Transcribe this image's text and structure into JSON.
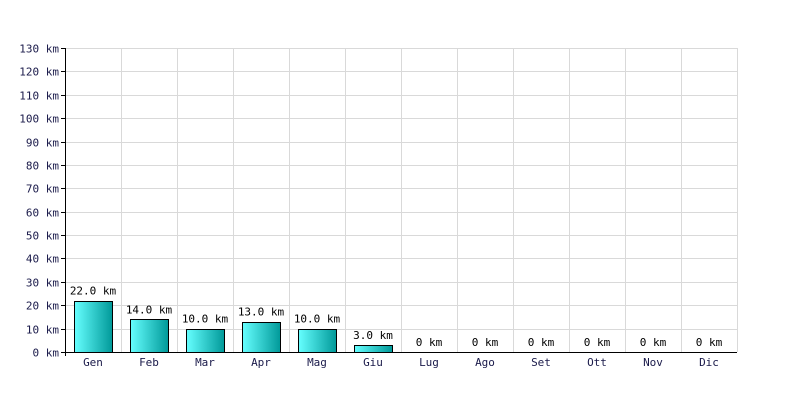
{
  "chart_data": {
    "type": "bar",
    "title": "",
    "xlabel": "",
    "ylabel": "",
    "unit": "km",
    "categories": [
      "Gen",
      "Feb",
      "Mar",
      "Apr",
      "Mag",
      "Giu",
      "Lug",
      "Ago",
      "Set",
      "Ott",
      "Nov",
      "Dic"
    ],
    "values": [
      22,
      14,
      10,
      13,
      10,
      3,
      0,
      0,
      0,
      0,
      0,
      0
    ],
    "data_labels": [
      "22.0 km",
      "14.0 km",
      "10.0 km",
      "13.0 km",
      "10.0 km",
      "3.0 km",
      "0 km",
      "0 km",
      "0 km",
      "0 km",
      "0 km",
      "0 km"
    ],
    "y_tick_labels": [
      "0 km",
      "10 km",
      "20 km",
      "30 km",
      "40 km",
      "50 km",
      "60 km",
      "70 km",
      "80 km",
      "90 km",
      "100 km",
      "110 km",
      "120 km",
      "130 km"
    ],
    "y_ticks": [
      0,
      10,
      20,
      30,
      40,
      50,
      60,
      70,
      80,
      90,
      100,
      110,
      120,
      130
    ],
    "ylim": [
      0,
      130
    ],
    "grid": true,
    "legend": "none",
    "colors": {
      "bar_light": "#66ffff",
      "bar_dark": "#009999",
      "grid": "#d9d9d9",
      "axis": "#000000",
      "tick_text": "#1a1a4a"
    }
  }
}
